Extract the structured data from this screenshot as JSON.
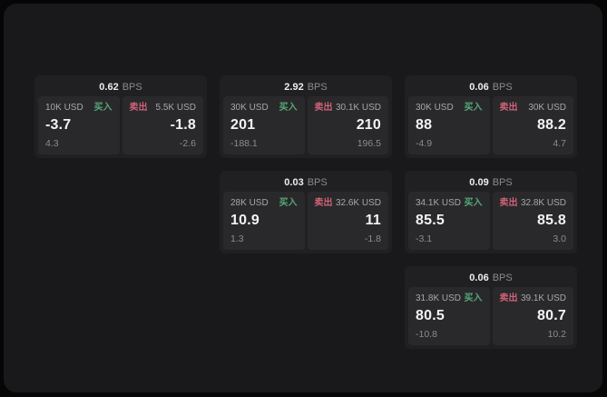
{
  "labels": {
    "unit": "BPS",
    "buy": "买入",
    "sell": "卖出"
  },
  "colors": {
    "buy": "#56a878",
    "sell": "#cf6277",
    "card_bg": "#202023",
    "panel_bg": "#29292c",
    "window_bg": "#19191b"
  },
  "cards": [
    {
      "bps": "0.62",
      "buy": {
        "amount": "10K USD",
        "value": "-3.7",
        "sub": "4.3"
      },
      "sell": {
        "amount": "5.5K USD",
        "value": "-1.8",
        "sub": "-2.6"
      }
    },
    {
      "bps": "2.92",
      "buy": {
        "amount": "30K USD",
        "value": "201",
        "sub": "-188.1"
      },
      "sell": {
        "amount": "30.1K USD",
        "value": "210",
        "sub": "196.5"
      }
    },
    {
      "bps": "0.06",
      "buy": {
        "amount": "30K USD",
        "value": "88",
        "sub": "-4.9"
      },
      "sell": {
        "amount": "30K USD",
        "value": "88.2",
        "sub": "4.7"
      }
    },
    {
      "bps": "0.03",
      "buy": {
        "amount": "28K USD",
        "value": "10.9",
        "sub": "1.3"
      },
      "sell": {
        "amount": "32.6K USD",
        "value": "11",
        "sub": "-1.8"
      }
    },
    {
      "bps": "0.09",
      "buy": {
        "amount": "34.1K USD",
        "value": "85.5",
        "sub": "-3.1"
      },
      "sell": {
        "amount": "32.8K USD",
        "value": "85.8",
        "sub": "3.0"
      }
    },
    {
      "bps": "0.06",
      "buy": {
        "amount": "31.8K USD",
        "value": "80.5",
        "sub": "-10.8"
      },
      "sell": {
        "amount": "39.1K USD",
        "value": "80.7",
        "sub": "10.2"
      }
    }
  ]
}
